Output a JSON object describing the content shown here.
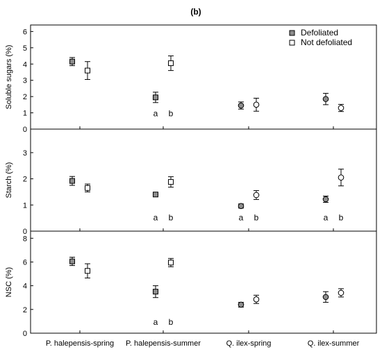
{
  "panel_label": "(b)",
  "chart_data": [
    {
      "type": "scatter",
      "ylabel": "Soluble sugars (%)",
      "ylim": [
        0,
        6.4
      ],
      "yticks": [
        0,
        1,
        2,
        3,
        4,
        5,
        6
      ],
      "grid": false,
      "legend": {
        "placement": "top-right",
        "entries": [
          {
            "label": "Defoliated",
            "color": "#8c8c8c"
          },
          {
            "label": "Not defoliated",
            "color": "#ffffff"
          }
        ]
      },
      "categories": [
        "P. halepensis-spring",
        "P. halepensis-summer",
        "Q. ilex-spring",
        "Q. ilex-summer"
      ],
      "series": [
        {
          "name": "Defoliated",
          "marker": "square",
          "fill": "#8c8c8c",
          "values": [
            4.15,
            1.95,
            1.45,
            1.85
          ],
          "err": [
            0.25,
            0.32,
            0.22,
            0.35
          ]
        },
        {
          "name": "Not defoliated",
          "marker": "square",
          "fill": "#ffffff",
          "values": [
            3.6,
            4.05,
            1.5,
            1.3
          ],
          "err": [
            0.55,
            0.45,
            0.4,
            0.22
          ]
        }
      ],
      "annotations": [
        {
          "category_index": 1,
          "series_index": 0,
          "text": "a",
          "y": 0.95
        },
        {
          "category_index": 1,
          "series_index": 1,
          "text": "b",
          "y": 0.95
        }
      ]
    },
    {
      "type": "scatter",
      "ylabel": "Starch (%)",
      "ylim": [
        0,
        3.9
      ],
      "yticks": [
        0,
        1,
        2,
        3
      ],
      "grid": false,
      "categories": [
        "P. halepensis-spring",
        "P. halepensis-summer",
        "Q. ilex-spring",
        "Q. ilex-summer"
      ],
      "series": [
        {
          "name": "Defoliated",
          "marker": "square",
          "fill": "#8c8c8c",
          "values": [
            1.92,
            1.4,
            0.96,
            1.22
          ],
          "err": [
            0.17,
            0.04,
            0.08,
            0.12
          ]
        },
        {
          "name": "Not defoliated",
          "marker": "square",
          "fill": "#ffffff",
          "values": [
            1.65,
            1.88,
            1.38,
            2.05
          ],
          "err": [
            0.15,
            0.2,
            0.17,
            0.32
          ]
        }
      ],
      "annotations": [
        {
          "category_index": 1,
          "series_index": 0,
          "text": "a",
          "y": 0.52
        },
        {
          "category_index": 1,
          "series_index": 1,
          "text": "b",
          "y": 0.52
        },
        {
          "category_index": 2,
          "series_index": 0,
          "text": "a",
          "y": 0.52
        },
        {
          "category_index": 2,
          "series_index": 1,
          "text": "b",
          "y": 0.52
        },
        {
          "category_index": 3,
          "series_index": 0,
          "text": "a",
          "y": 0.52
        },
        {
          "category_index": 3,
          "series_index": 1,
          "text": "b",
          "y": 0.52
        }
      ]
    },
    {
      "type": "scatter",
      "ylabel": "NSC (%)",
      "ylim": [
        0,
        8.6
      ],
      "yticks": [
        0,
        2,
        4,
        6,
        8
      ],
      "grid": false,
      "categories": [
        "P. halepensis-spring",
        "P. halepensis-summer",
        "Q. ilex-spring",
        "Q. ilex-summer"
      ],
      "series": [
        {
          "name": "Defoliated",
          "marker": "square",
          "fill": "#8c8c8c",
          "values": [
            6.05,
            3.5,
            2.4,
            3.05
          ],
          "err": [
            0.35,
            0.5,
            0.2,
            0.45
          ]
        },
        {
          "name": "Not defoliated",
          "marker": "square",
          "fill": "#ffffff",
          "values": [
            5.25,
            5.95,
            2.85,
            3.4
          ],
          "err": [
            0.6,
            0.35,
            0.35,
            0.35
          ]
        }
      ],
      "annotations": [
        {
          "category_index": 1,
          "series_index": 0,
          "text": "a",
          "y": 0.95
        },
        {
          "category_index": 1,
          "series_index": 1,
          "text": "b",
          "y": 0.95
        }
      ]
    }
  ]
}
